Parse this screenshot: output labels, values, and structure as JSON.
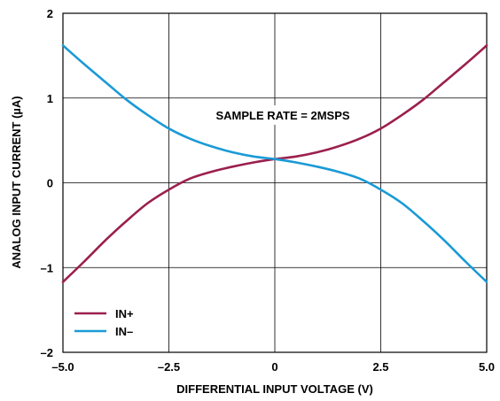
{
  "chart_data": {
    "type": "line",
    "title": "",
    "xlabel": "DIFFERENTIAL INPUT VOLTAGE (V)",
    "ylabel": "ANALOG INPUT CURRENT (µA)",
    "xlim": [
      -5.0,
      5.0
    ],
    "ylim": [
      -2,
      2
    ],
    "x_ticks": [
      -5.0,
      -2.5,
      0,
      2.5,
      5.0
    ],
    "x_tick_labels": [
      "–5.0",
      "–2.5",
      "0",
      "2.5",
      "5.0"
    ],
    "y_ticks": [
      -2,
      -1,
      0,
      1,
      2
    ],
    "y_tick_labels": [
      "–2",
      "–1",
      "0",
      "1",
      "2"
    ],
    "grid": true,
    "annotation": "SAMPLE RATE = 2MSPS",
    "legend_position": "bottom-left",
    "series": [
      {
        "name": "IN+",
        "color": "#9b1f4d",
        "x": [
          -5.0,
          -4.5,
          -4.0,
          -3.5,
          -3.0,
          -2.5,
          -2.0,
          -1.5,
          -1.0,
          -0.5,
          0.0,
          0.5,
          1.0,
          1.5,
          2.0,
          2.5,
          3.0,
          3.5,
          4.0,
          4.5,
          5.0
        ],
        "y": [
          -1.17,
          -0.93,
          -0.68,
          -0.45,
          -0.24,
          -0.08,
          0.05,
          0.13,
          0.19,
          0.24,
          0.28,
          0.31,
          0.36,
          0.43,
          0.52,
          0.64,
          0.8,
          0.98,
          1.19,
          1.4,
          1.62
        ]
      },
      {
        "name": "IN–",
        "color": "#1a9ad6",
        "x": [
          -5.0,
          -4.5,
          -4.0,
          -3.5,
          -3.0,
          -2.5,
          -2.0,
          -1.5,
          -1.0,
          -0.5,
          0.0,
          0.5,
          1.0,
          1.5,
          2.0,
          2.5,
          3.0,
          3.5,
          4.0,
          4.5,
          5.0
        ],
        "y": [
          1.62,
          1.4,
          1.19,
          0.98,
          0.8,
          0.64,
          0.52,
          0.43,
          0.36,
          0.31,
          0.28,
          0.24,
          0.19,
          0.13,
          0.05,
          -0.08,
          -0.24,
          -0.45,
          -0.68,
          -0.93,
          -1.17
        ]
      }
    ]
  }
}
